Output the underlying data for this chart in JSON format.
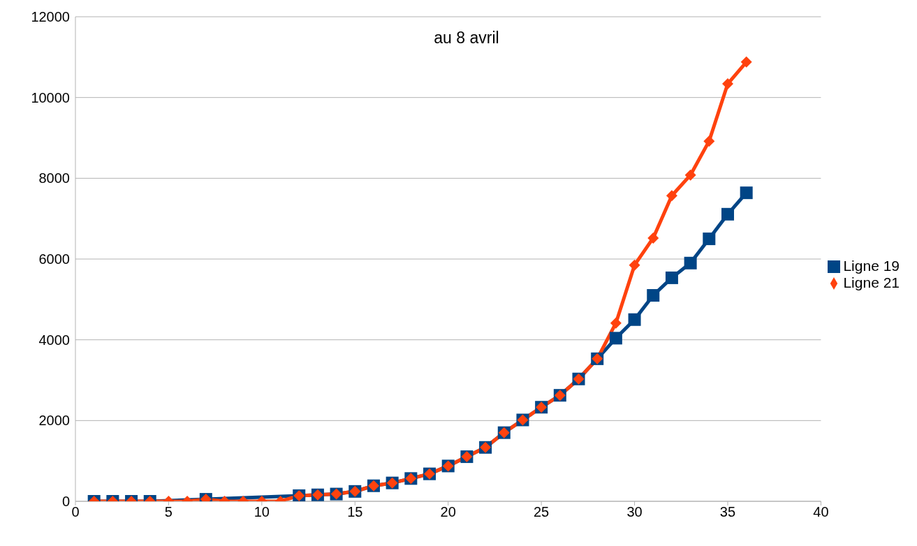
{
  "chart_data": {
    "type": "line",
    "title": "au 8 avril",
    "x": [
      1,
      2,
      3,
      4,
      5,
      6,
      7,
      8,
      9,
      10,
      11,
      12,
      13,
      14,
      15,
      16,
      17,
      18,
      19,
      20,
      21,
      22,
      23,
      24,
      25,
      26,
      27,
      28,
      29,
      30,
      31,
      32,
      33,
      34,
      35,
      36
    ],
    "series": [
      {
        "name": "Ligne 19",
        "color": "#004586",
        "marker": "square",
        "values": [
          0,
          0,
          0,
          0,
          null,
          null,
          50,
          null,
          null,
          null,
          null,
          140,
          160,
          180,
          245,
          385,
          455,
          565,
          680,
          875,
          1105,
          1335,
          1700,
          2015,
          2330,
          2625,
          3030,
          3530,
          4040,
          4500,
          5100,
          5535,
          5900,
          6500,
          7110,
          7640
        ]
      },
      {
        "name": "Ligne 21",
        "color": "#ff420e",
        "marker": "diamond",
        "values": [
          0,
          0,
          0,
          0,
          0,
          0,
          50,
          0,
          0,
          0,
          0,
          140,
          160,
          180,
          245,
          385,
          455,
          565,
          680,
          875,
          1105,
          1335,
          1700,
          2015,
          2330,
          2625,
          3030,
          3530,
          4415,
          5850,
          6520,
          7570,
          8080,
          8920,
          10340,
          10880
        ]
      }
    ],
    "xlim": [
      0,
      40
    ],
    "xticks": [
      0,
      5,
      10,
      15,
      20,
      25,
      30,
      35,
      40
    ],
    "ylim": [
      0,
      12000
    ],
    "yticks": [
      0,
      2000,
      4000,
      6000,
      8000,
      10000,
      12000
    ],
    "grid": "y",
    "legend": "right",
    "line_style": "solid"
  }
}
